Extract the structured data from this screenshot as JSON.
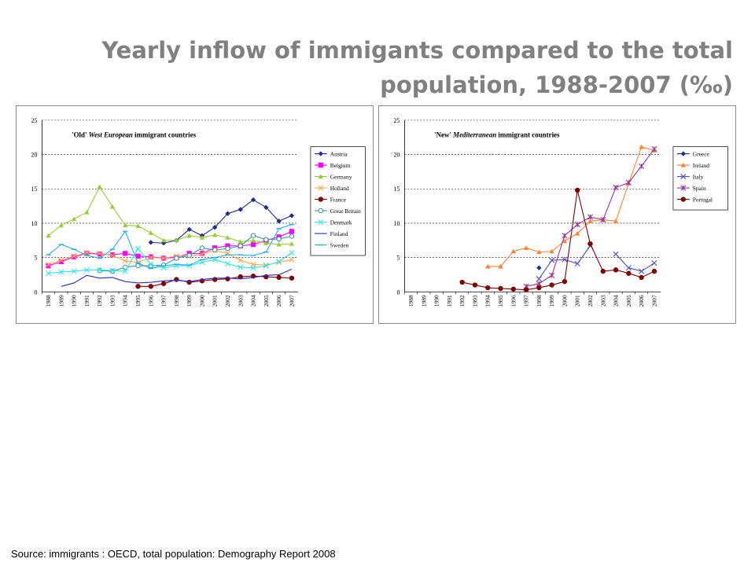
{
  "slide": {
    "title_line1": "Yearly inflow of immigants compared to the  total",
    "title_line2": "population, 1988-2007 (‰)",
    "source": "Source: immigrants : OECD, total population: Demography Report 2008"
  },
  "chart_data": [
    {
      "type": "line",
      "title_parts": [
        "'Old' ",
        "West European",
        " immigrant countries"
      ],
      "x": [
        "1988",
        "1989",
        "1990",
        "1991",
        "1992",
        "1993",
        "1994",
        "1995",
        "1996",
        "1997",
        "1998",
        "1999",
        "2000",
        "2001",
        "2002",
        "2003",
        "2004",
        "2005",
        "2006",
        "2007"
      ],
      "ylim": [
        0,
        25
      ],
      "yticks": [
        0,
        5,
        10,
        15,
        20,
        25
      ],
      "grid": "dashed horizontal",
      "legend_position": "right",
      "series": [
        {
          "name": "Austria",
          "color": "#1f2e8c",
          "marker": "diamond",
          "values": [
            null,
            null,
            null,
            null,
            null,
            null,
            null,
            null,
            7.2,
            7.1,
            7.5,
            9.1,
            8.2,
            9.4,
            11.4,
            12.0,
            13.4,
            12.3,
            10.3,
            11.1
          ]
        },
        {
          "name": "Belgium",
          "color": "#ff00ff",
          "marker": "square",
          "values": [
            3.8,
            4.4,
            5.1,
            5.6,
            5.5,
            5.4,
            5.6,
            5.2,
            5.1,
            4.9,
            5.0,
            5.6,
            5.6,
            6.4,
            6.7,
            6.7,
            6.9,
            7.5,
            8.0,
            8.8
          ]
        },
        {
          "name": "Germany",
          "color": "#99cc33",
          "marker": "triangle",
          "values": [
            8.2,
            9.7,
            10.6,
            11.6,
            15.3,
            12.4,
            9.7,
            9.6,
            8.6,
            7.5,
            7.5,
            8.2,
            7.9,
            8.3,
            7.9,
            7.3,
            7.5,
            7.1,
            6.9,
            7.0
          ]
        },
        {
          "name": "Holland",
          "color": "#ffa64d",
          "marker": "x",
          "values": [
            4.0,
            4.6,
            5.2,
            5.7,
            5.6,
            5.3,
            4.5,
            4.3,
            5.0,
            4.9,
            5.2,
            5.2,
            5.5,
            6.0,
            5.6,
            4.6,
            4.0,
            3.9,
            4.3,
            4.7
          ]
        },
        {
          "name": "France",
          "color": "#800000",
          "marker": "circle",
          "values": [
            null,
            null,
            null,
            null,
            null,
            null,
            null,
            0.8,
            0.8,
            1.2,
            1.8,
            1.4,
            1.6,
            1.8,
            1.9,
            2.2,
            2.3,
            2.2,
            2.1,
            2.0
          ]
        },
        {
          "name": "Great Britain",
          "color": "#339999",
          "marker": "circle-open",
          "values": [
            null,
            null,
            null,
            null,
            3.1,
            3.0,
            3.6,
            3.8,
            3.8,
            3.9,
            4.9,
            5.3,
            6.4,
            6.1,
            6.3,
            6.7,
            8.2,
            7.6,
            7.7,
            8.1
          ]
        },
        {
          "name": "Denmark",
          "color": "#33e6e6",
          "marker": "x",
          "values": [
            2.7,
            2.9,
            3.0,
            3.2,
            3.2,
            3.1,
            3.0,
            6.3,
            4.0,
            3.5,
            3.8,
            3.8,
            4.3,
            4.7,
            4.1,
            3.6,
            3.5,
            3.8,
            4.4,
            5.7
          ]
        },
        {
          "name": "Finland",
          "color": "#2a2acc",
          "marker": "line",
          "values": [
            null,
            0.8,
            1.3,
            2.4,
            2.0,
            2.1,
            1.5,
            1.3,
            1.4,
            1.6,
            1.7,
            1.5,
            1.8,
            2.0,
            2.0,
            1.9,
            2.1,
            2.4,
            2.5,
            3.3
          ]
        },
        {
          "name": "Sweden",
          "color": "#1fb2e6",
          "marker": "dash",
          "values": [
            5.4,
            6.9,
            6.2,
            5.3,
            4.9,
            6.2,
            8.8,
            4.2,
            3.4,
            3.8,
            4.0,
            3.9,
            4.7,
            5.0,
            5.4,
            5.4,
            5.3,
            5.8,
            9.2,
            9.8
          ]
        }
      ]
    },
    {
      "type": "line",
      "title_parts": [
        "'New' ",
        "Mediterranean",
        " immigrant countries"
      ],
      "x": [
        "1988",
        "1989",
        "1990",
        "1991",
        "1992",
        "1993",
        "1994",
        "1995",
        "1996",
        "1997",
        "1998",
        "1999",
        "2000",
        "2001",
        "2002",
        "2003",
        "2004",
        "2005",
        "2006",
        "2007"
      ],
      "ylim": [
        0,
        25
      ],
      "yticks": [
        0,
        5,
        10,
        15,
        20,
        25
      ],
      "grid": "dashed horizontal",
      "legend_position": "right",
      "series": [
        {
          "name": "Greece",
          "color": "#1f2e8c",
          "marker": "diamond",
          "values": [
            null,
            null,
            null,
            null,
            null,
            null,
            null,
            null,
            null,
            null,
            3.5,
            null,
            null,
            null,
            null,
            null,
            null,
            null,
            null,
            null
          ]
        },
        {
          "name": "Ireland",
          "color": "#ff8033",
          "marker": "triangle",
          "values": [
            null,
            null,
            null,
            null,
            null,
            null,
            3.7,
            3.7,
            5.9,
            6.4,
            5.8,
            5.9,
            7.4,
            8.5,
            10.3,
            10.5,
            10.3,
            15.8,
            21.1,
            20.6
          ]
        },
        {
          "name": "Italy",
          "color": "#4d4dcc",
          "marker": "x",
          "values": [
            null,
            null,
            null,
            null,
            null,
            null,
            null,
            null,
            null,
            null,
            1.9,
            4.6,
            4.7,
            4.1,
            6.7,
            null,
            5.5,
            3.5,
            3.0,
            4.2
          ]
        },
        {
          "name": "Spain",
          "color": "#993399",
          "marker": "star",
          "values": [
            null,
            null,
            null,
            null,
            null,
            null,
            null,
            null,
            null,
            0.8,
            1.2,
            2.4,
            8.2,
            9.8,
            10.9,
            10.5,
            15.2,
            15.9,
            18.3,
            20.8
          ]
        },
        {
          "name": "Portugal",
          "color": "#800000",
          "marker": "circle",
          "values": [
            null,
            null,
            null,
            null,
            1.4,
            1.0,
            0.6,
            0.5,
            0.4,
            0.3,
            0.6,
            1.0,
            1.5,
            14.8,
            7.0,
            3.0,
            3.2,
            2.7,
            2.1,
            3.0
          ]
        }
      ]
    }
  ]
}
